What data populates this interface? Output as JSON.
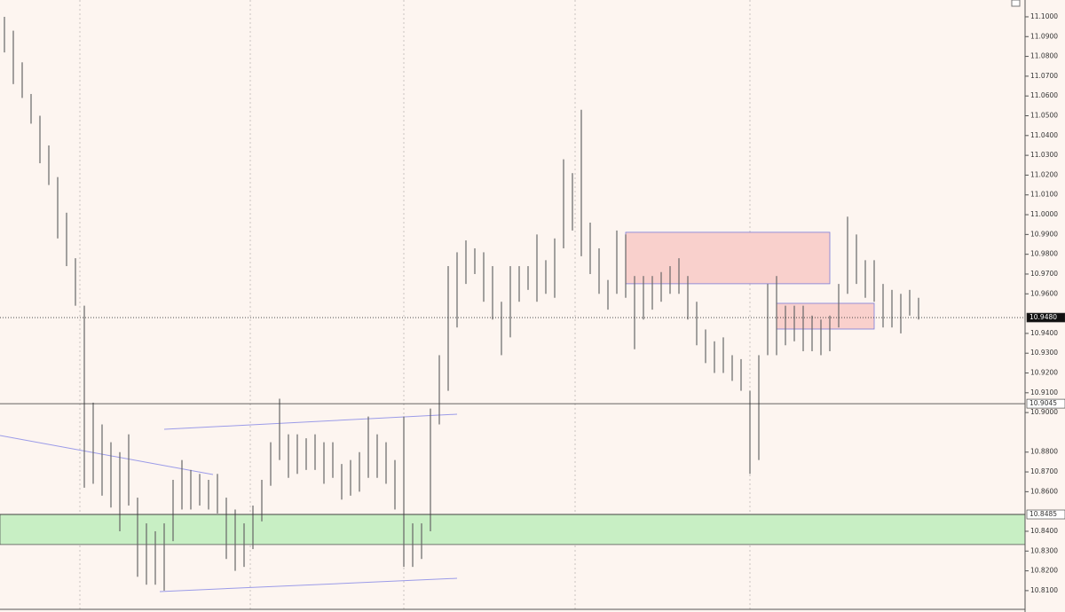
{
  "chart_data": {
    "type": "range",
    "high": [
      11.1,
      11.093,
      11.077,
      11.061,
      11.05,
      11.035,
      11.019,
      11.001,
      10.978,
      10.954,
      10.905,
      10.894,
      10.885,
      10.88,
      10.889,
      10.857,
      10.844,
      10.84,
      10.844,
      10.866,
      10.876,
      10.871,
      10.869,
      10.866,
      10.869,
      10.857,
      10.851,
      10.844,
      10.853,
      10.866,
      10.885,
      10.907,
      10.889,
      10.889,
      10.887,
      10.889,
      10.885,
      10.885,
      10.874,
      10.876,
      10.88,
      10.898,
      10.889,
      10.885,
      10.876,
      10.898,
      10.844,
      10.844,
      10.902,
      10.929,
      10.974,
      10.981,
      10.987,
      10.983,
      10.981,
      10.974,
      10.956,
      10.974,
      10.974,
      10.974,
      10.99,
      10.977,
      10.988,
      11.028,
      11.021,
      11.053,
      10.996,
      10.983,
      10.967,
      10.992,
      10.99,
      10.969,
      10.969,
      10.969,
      10.971,
      10.974,
      10.978,
      10.969,
      10.956,
      10.942,
      10.936,
      10.938,
      10.929,
      10.927,
      10.911,
      10.929,
      10.965,
      10.969,
      10.954,
      10.954,
      10.954,
      10.949,
      10.947,
      10.949,
      10.965,
      10.999,
      10.99,
      10.977,
      10.977,
      10.965,
      10.962,
      10.96,
      10.962,
      10.958
    ],
    "low": [
      11.082,
      11.066,
      11.059,
      11.046,
      11.026,
      11.015,
      10.988,
      10.974,
      10.954,
      10.862,
      10.864,
      10.858,
      10.852,
      10.84,
      10.853,
      10.817,
      10.813,
      10.813,
      10.81,
      10.835,
      10.851,
      10.851,
      10.853,
      10.851,
      10.849,
      10.826,
      10.82,
      10.822,
      10.831,
      10.845,
      10.863,
      10.876,
      10.867,
      10.869,
      10.871,
      10.871,
      10.864,
      10.867,
      10.856,
      10.858,
      10.86,
      10.867,
      10.867,
      10.864,
      10.851,
      10.822,
      10.822,
      10.826,
      10.84,
      10.894,
      10.911,
      10.943,
      10.965,
      10.97,
      10.956,
      10.947,
      10.929,
      10.938,
      10.956,
      10.962,
      10.956,
      10.96,
      10.958,
      10.983,
      10.992,
      10.979,
      10.97,
      10.96,
      10.952,
      10.96,
      10.958,
      10.932,
      10.947,
      10.952,
      10.956,
      10.96,
      10.96,
      10.947,
      10.934,
      10.925,
      10.92,
      10.92,
      10.916,
      10.911,
      10.869,
      10.876,
      10.929,
      10.929,
      10.934,
      10.936,
      10.931,
      10.931,
      10.929,
      10.931,
      10.943,
      10.96,
      10.965,
      10.958,
      10.956,
      10.943,
      10.943,
      10.94,
      10.949,
      10.947
    ],
    "color": "#666666",
    "ylim": [
      10.7992,
      11.1085
    ],
    "yticks": [
      {
        "value": 11.1,
        "label": "11.1000"
      },
      {
        "value": 11.09,
        "label": "11.0900"
      },
      {
        "value": 11.08,
        "label": "11.0800"
      },
      {
        "value": 11.07,
        "label": "11.0700"
      },
      {
        "value": 11.06,
        "label": "11.0600"
      },
      {
        "value": 11.05,
        "label": "11.0500"
      },
      {
        "value": 11.04,
        "label": "11.0400"
      },
      {
        "value": 11.03,
        "label": "11.0300"
      },
      {
        "value": 11.02,
        "label": "11.0200"
      },
      {
        "value": 11.01,
        "label": "11.0100"
      },
      {
        "value": 11.0,
        "label": "11.0000"
      },
      {
        "value": 10.99,
        "label": "10.9900"
      },
      {
        "value": 10.98,
        "label": "10.9800"
      },
      {
        "value": 10.97,
        "label": "10.9700"
      },
      {
        "value": 10.96,
        "label": "10.9600"
      },
      {
        "value": 10.94,
        "label": "10.9400"
      },
      {
        "value": 10.93,
        "label": "10.9300"
      },
      {
        "value": 10.92,
        "label": "10.9200"
      },
      {
        "value": 10.91,
        "label": "10.9100"
      },
      {
        "value": 10.9,
        "label": "10.9000"
      },
      {
        "value": 10.88,
        "label": "10.8800"
      },
      {
        "value": 10.87,
        "label": "10.8700"
      },
      {
        "value": 10.86,
        "label": "10.8600"
      },
      {
        "value": 10.84,
        "label": "10.8400"
      },
      {
        "value": 10.83,
        "label": "10.8300"
      },
      {
        "value": 10.82,
        "label": "10.8200"
      },
      {
        "value": 10.81,
        "label": "10.8100"
      }
    ],
    "price_lines": [
      {
        "value": 10.948,
        "label": "10.9480",
        "style": "dotted"
      },
      {
        "value": 10.9045,
        "label": "10.9045",
        "style": "solid"
      },
      {
        "value": 10.8485,
        "label": "10.8485",
        "style": "solid"
      }
    ],
    "zones": [
      {
        "low": 10.8333,
        "high": 10.8485,
        "color": "#c8efc4"
      },
      {
        "low": 10.9651,
        "high": 10.9911,
        "start": 70,
        "end": 93,
        "color": "#f9d0cc"
      },
      {
        "low": 10.9422,
        "high": 10.9552,
        "start": 87,
        "end": 98,
        "color": "#f9d0cc"
      }
    ]
  }
}
